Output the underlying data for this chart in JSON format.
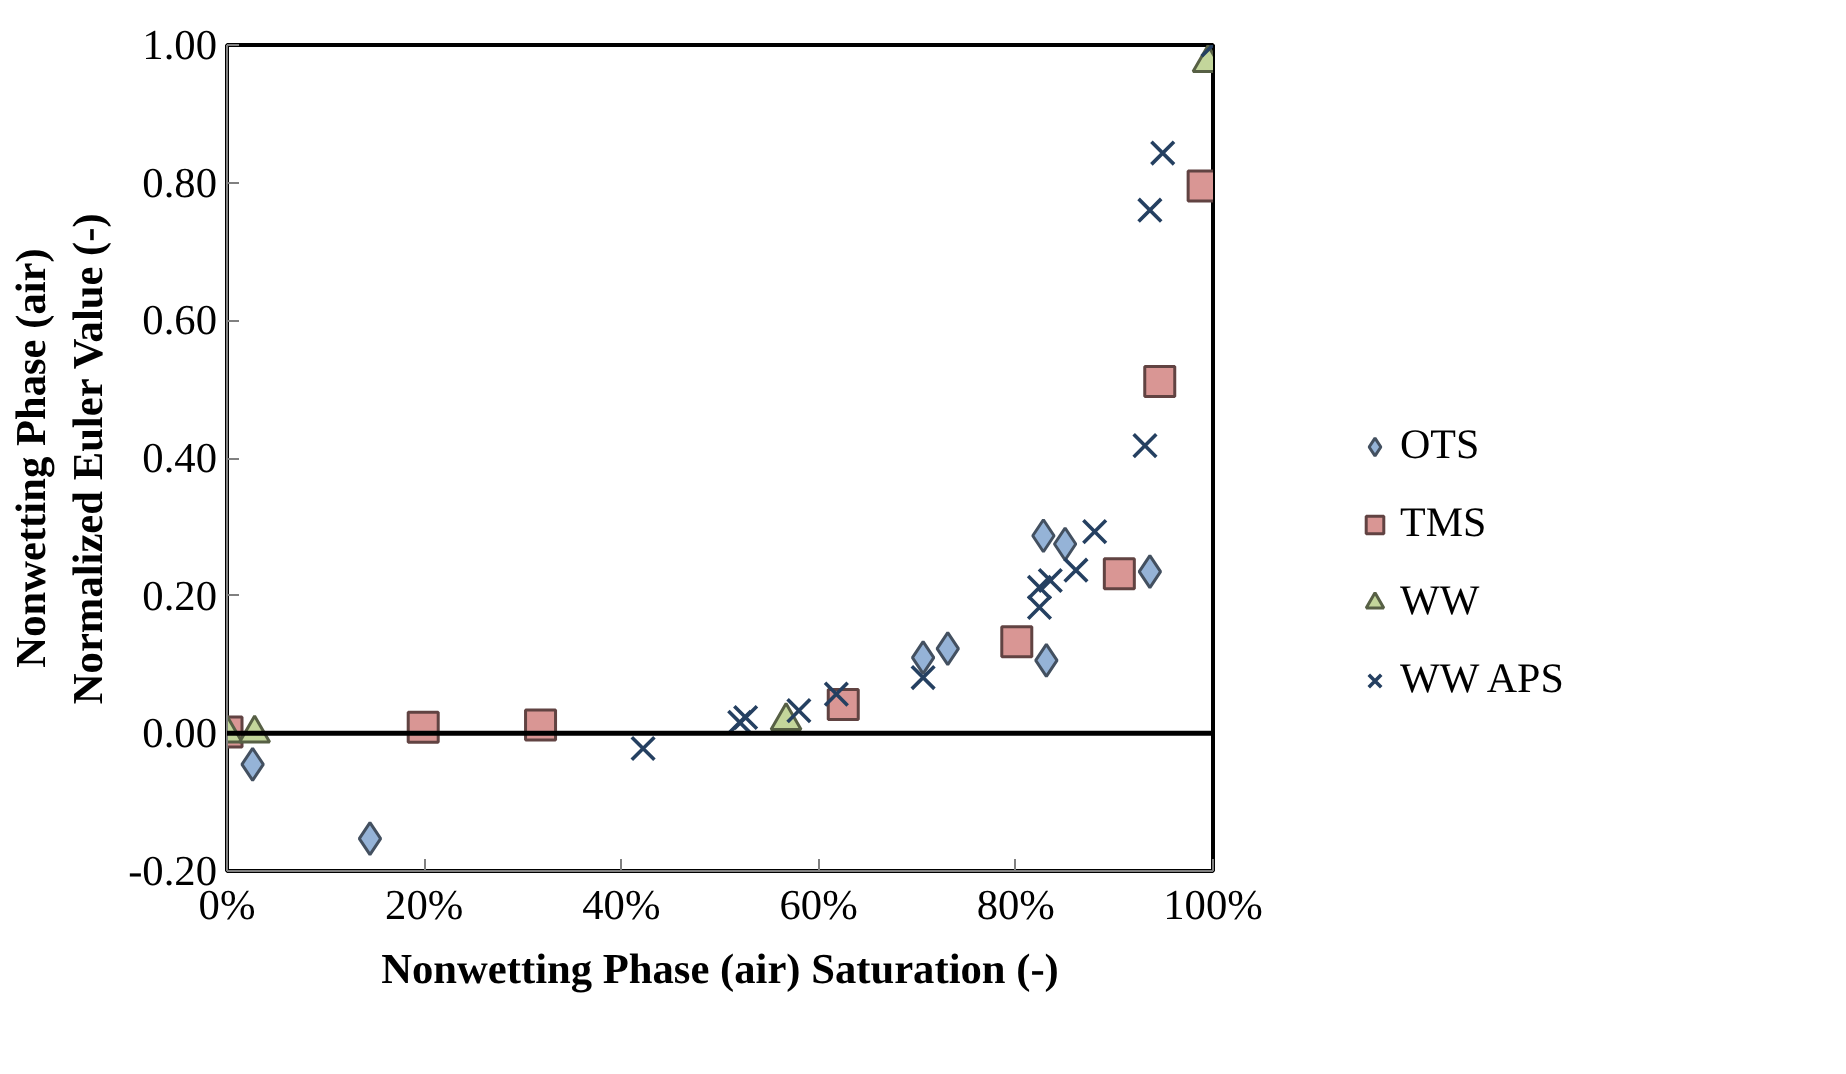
{
  "chart_data": {
    "type": "scatter",
    "xlabel": "Nonwetting Phase (air) Saturation (-)",
    "ylabel": "Nonwetting Phase (air)\nNormalized Euler Value (-)",
    "xlim": [
      0,
      100
    ],
    "ylim": [
      -0.2,
      1.0
    ],
    "xticks": [
      {
        "value": 0,
        "label": "0%"
      },
      {
        "value": 20,
        "label": "20%"
      },
      {
        "value": 40,
        "label": "40%"
      },
      {
        "value": 60,
        "label": "60%"
      },
      {
        "value": 80,
        "label": "80%"
      },
      {
        "value": 100,
        "label": "100%"
      }
    ],
    "yticks": [
      {
        "value": -0.2,
        "label": "-0.20"
      },
      {
        "value": 0,
        "label": "0.00"
      },
      {
        "value": 0.2,
        "label": "0.20"
      },
      {
        "value": 0.4,
        "label": "0.40"
      },
      {
        "value": 0.6,
        "label": "0.60"
      },
      {
        "value": 0.8,
        "label": "0.80"
      },
      {
        "value": 1.0,
        "label": "1.00"
      }
    ],
    "grid": false,
    "legend": "right",
    "ref_lines": [
      {
        "axis": "y",
        "value": 0,
        "color": "#000000"
      }
    ],
    "series": [
      {
        "name": "OTS",
        "color": "#95b3d7",
        "marker": "diamond",
        "x": [
          2.6,
          14.5,
          70.6,
          73.1,
          82.8,
          85.0,
          83.1,
          93.6
        ],
        "values": [
          -0.045,
          -0.153,
          0.11,
          0.123,
          0.287,
          0.275,
          0.106,
          0.235
        ]
      },
      {
        "name": "TMS",
        "color": "#d99694",
        "marker": "square",
        "x": [
          0,
          19.9,
          31.8,
          62.5,
          80.1,
          90.5,
          94.6,
          99.0
        ],
        "values": [
          0.002,
          0.009,
          0.012,
          0.042,
          0.133,
          0.232,
          0.511,
          0.795
        ]
      },
      {
        "name": "WW",
        "color": "#c3d69b",
        "marker": "triangle",
        "x": [
          0,
          2.8,
          56.7,
          99.5
        ],
        "values": [
          0.0,
          0.0,
          0.018,
          0.974
        ]
      },
      {
        "name": "WW APS",
        "color": "#254061",
        "marker": "cross",
        "x": [
          42.2,
          52.0,
          52.6,
          58.0,
          61.8,
          70.6,
          82.4,
          82.4,
          83.5,
          86.1,
          88.0,
          93.1,
          93.6,
          94.9,
          100
        ],
        "values": [
          -0.022,
          0.016,
          0.023,
          0.033,
          0.057,
          0.081,
          0.183,
          0.212,
          0.222,
          0.237,
          0.293,
          0.418,
          0.76,
          0.843,
          1.0
        ]
      }
    ]
  }
}
